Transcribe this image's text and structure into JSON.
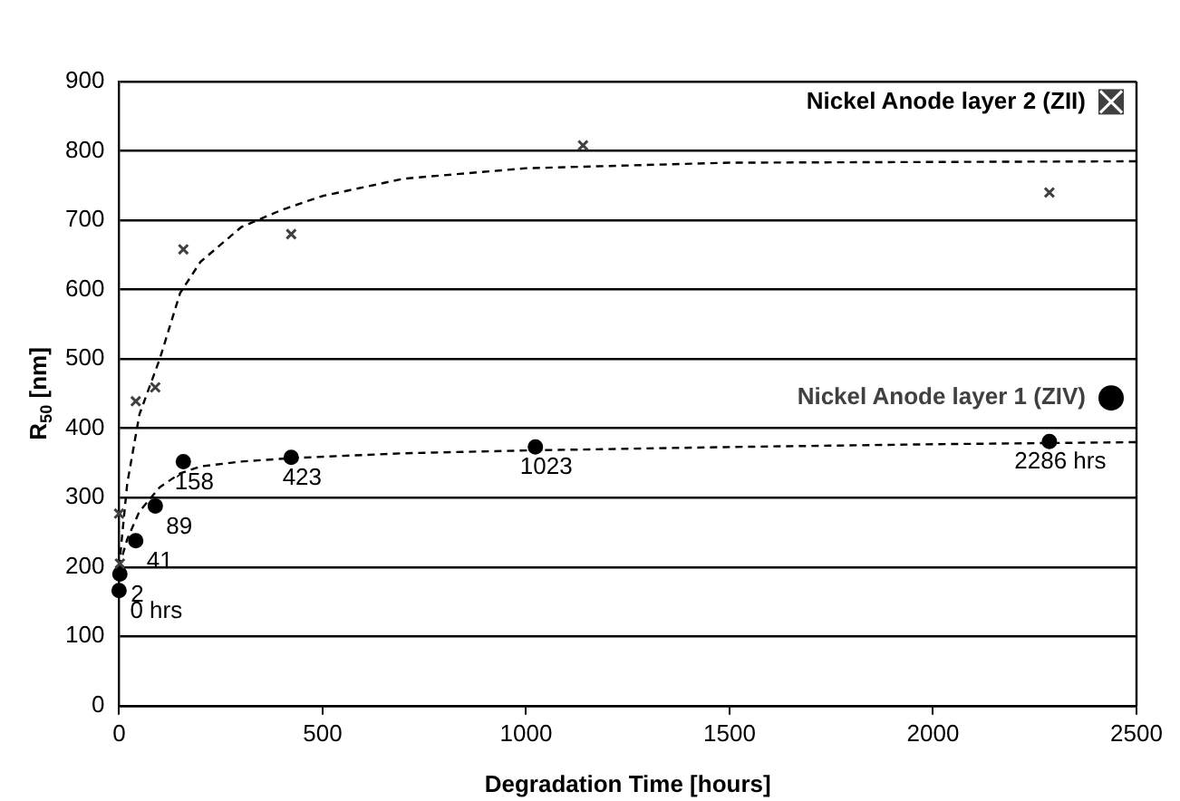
{
  "chart_data": {
    "type": "scatter",
    "xlabel": "Degradation Time [hours]",
    "ylabel": "R$_{50}$ [nm]",
    "xlim": [
      0,
      2500
    ],
    "xticks": [
      0,
      500,
      1000,
      1500,
      2000,
      2500
    ],
    "ylim": [
      0,
      900
    ],
    "yticks": [
      0,
      100,
      200,
      300,
      400,
      500,
      600,
      700,
      800,
      900
    ],
    "grid": "y",
    "legend": "right",
    "series": [
      {
        "name": "Nickel Anode layer 2 (ZII)",
        "marker": "cross",
        "color": "#404040",
        "x": [
          0,
          2,
          41,
          89,
          158,
          423,
          1140,
          2286
        ],
        "values": [
          277,
          205,
          439,
          459,
          658,
          680,
          808,
          740
        ]
      },
      {
        "name": "Nickel Anode layer 1 (ZIV)",
        "marker": "circle",
        "color": "#000000",
        "x": [
          0,
          2,
          41,
          89,
          158,
          423,
          1023,
          2286
        ],
        "values": [
          166,
          190,
          238,
          288,
          352,
          358,
          373,
          381
        ]
      },
      {
        "type": "line",
        "marker": "none",
        "line_style": "dashed",
        "color": "#000000",
        "x": [
          0,
          20,
          50,
          100,
          150,
          200,
          300,
          400,
          500,
          700,
          1000,
          1500,
          2500
        ],
        "values": [
          200,
          320,
          420,
          500,
          595,
          640,
          690,
          715,
          735,
          760,
          775,
          783,
          785
        ]
      },
      {
        "type": "line",
        "marker": "none",
        "line_style": "dashed",
        "color": "#000000",
        "x": [
          0,
          20,
          50,
          100,
          150,
          200,
          300,
          423,
          700,
          1000,
          1500,
          2000,
          2500
        ],
        "values": [
          200,
          240,
          280,
          315,
          335,
          345,
          352,
          357,
          364,
          368,
          373,
          377,
          380
        ]
      }
    ],
    "annotations": [
      {
        "text": "0 hrs",
        "x": 0,
        "y": 166
      },
      {
        "text": "2",
        "x": 2,
        "y": 190
      },
      {
        "text": "41",
        "x": 41,
        "y": 238
      },
      {
        "text": "89",
        "x": 89,
        "y": 288
      },
      {
        "text": "158",
        "x": 158,
        "y": 352
      },
      {
        "text": "423",
        "x": 423,
        "y": 358
      },
      {
        "text": "1023",
        "x": 1023,
        "y": 373
      },
      {
        "text": "2286 hrs",
        "x": 2286,
        "y": 381
      }
    ]
  }
}
